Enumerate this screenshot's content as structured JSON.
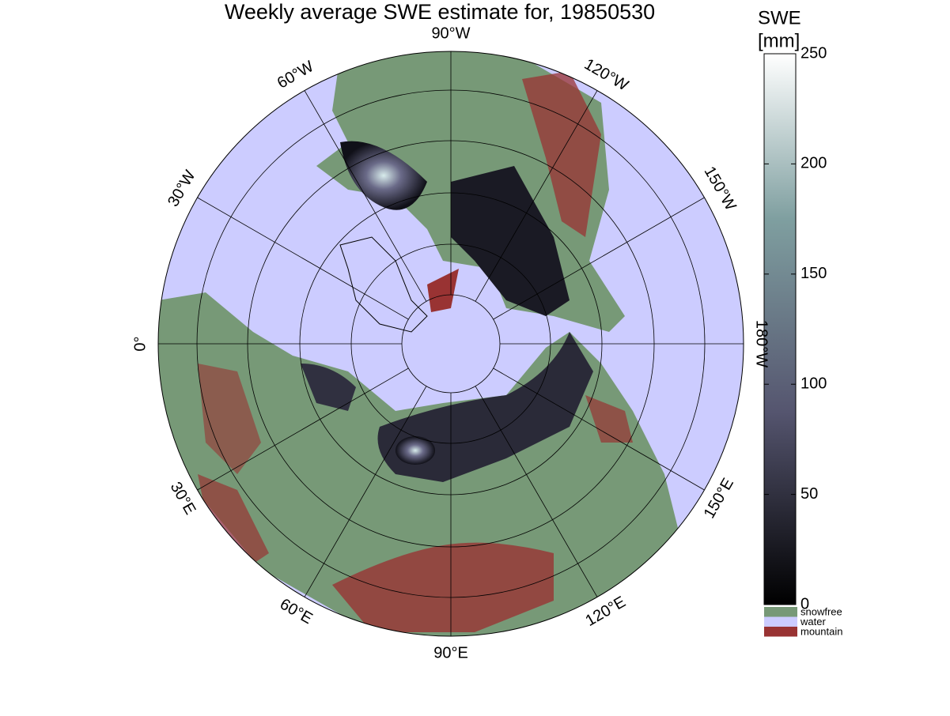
{
  "map": {
    "title": "Weekly average SWE estimate for, 19850530",
    "longitude_labels": [
      "0°",
      "30°E",
      "60°E",
      "90°E",
      "120°E",
      "150°E",
      "180°W",
      "150°W",
      "120°W",
      "90°W",
      "60°W",
      "30°W"
    ],
    "colorbar": {
      "label": [
        "SWE",
        "[mm]"
      ],
      "lim": [
        0,
        250
      ],
      "ticks": [
        0,
        50,
        100,
        150,
        200,
        250
      ]
    },
    "legend": [
      {
        "name": "snowfree",
        "color": "#779977"
      },
      {
        "name": "water",
        "color": "#ccccff"
      },
      {
        "name": "mountain",
        "color": "#993333"
      }
    ]
  }
}
